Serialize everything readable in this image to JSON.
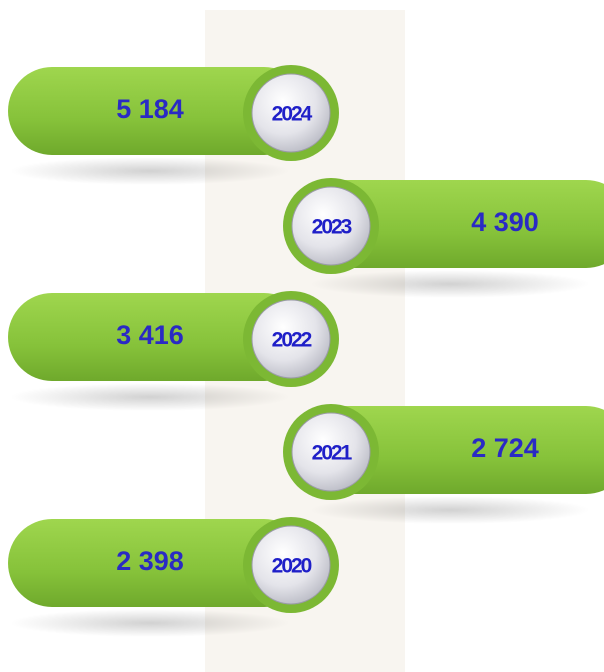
{
  "items": [
    {
      "year": "2024",
      "value": "5 184"
    },
    {
      "year": "2023",
      "value": "4 390"
    },
    {
      "year": "2022",
      "value": "3 416"
    },
    {
      "year": "2021",
      "value": "2 724"
    },
    {
      "year": "2020",
      "value": "2 398"
    }
  ]
}
